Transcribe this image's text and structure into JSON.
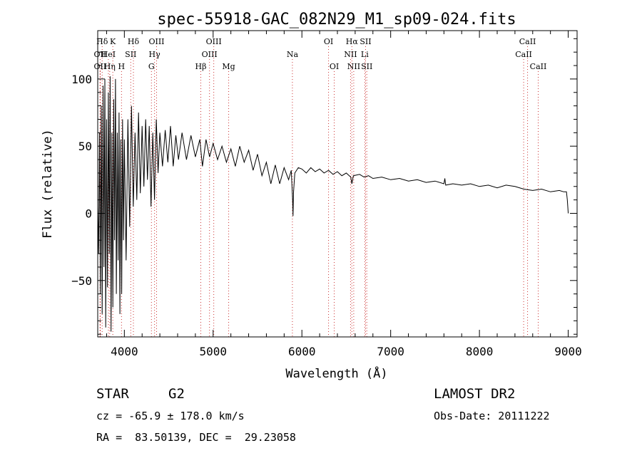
{
  "chart_data": {
    "type": "line",
    "title": "spec-55918-GAC_082N29_M1_sp09-024.fits",
    "xlabel": "Wavelength (Å)",
    "ylabel": "Flux (relative)",
    "xlim": [
      3700,
      9100
    ],
    "ylim": [
      -92,
      136
    ],
    "x_ticks": [
      4000,
      5000,
      6000,
      7000,
      8000,
      9000
    ],
    "y_ticks": [
      -50,
      0,
      50,
      100
    ],
    "grid": false,
    "line_color": "#000000",
    "marker_line_color": "#cc3333",
    "series": [
      {
        "name": "",
        "points": [
          [
            3700,
            5
          ],
          [
            3710,
            -30
          ],
          [
            3720,
            60
          ],
          [
            3730,
            -60
          ],
          [
            3740,
            80
          ],
          [
            3750,
            -75
          ],
          [
            3760,
            95
          ],
          [
            3770,
            -40
          ],
          [
            3780,
            100
          ],
          [
            3790,
            -85
          ],
          [
            3800,
            70
          ],
          [
            3810,
            -55
          ],
          [
            3820,
            90
          ],
          [
            3830,
            -30
          ],
          [
            3840,
            102
          ],
          [
            3850,
            -88
          ],
          [
            3860,
            60
          ],
          [
            3870,
            -70
          ],
          [
            3880,
            85
          ],
          [
            3890,
            -20
          ],
          [
            3900,
            100
          ],
          [
            3910,
            -60
          ],
          [
            3920,
            60
          ],
          [
            3930,
            -35
          ],
          [
            3940,
            75
          ],
          [
            3950,
            -75
          ],
          [
            3960,
            55
          ],
          [
            3970,
            -60
          ],
          [
            3980,
            70
          ],
          [
            3990,
            -20
          ],
          [
            4000,
            55
          ],
          [
            4020,
            -35
          ],
          [
            4040,
            70
          ],
          [
            4060,
            -10
          ],
          [
            4080,
            80
          ],
          [
            4100,
            5
          ],
          [
            4120,
            60
          ],
          [
            4140,
            10
          ],
          [
            4160,
            75
          ],
          [
            4180,
            15
          ],
          [
            4200,
            65
          ],
          [
            4220,
            20
          ],
          [
            4240,
            70
          ],
          [
            4260,
            25
          ],
          [
            4280,
            65
          ],
          [
            4300,
            5
          ],
          [
            4320,
            60
          ],
          [
            4340,
            10
          ],
          [
            4360,
            70
          ],
          [
            4380,
            30
          ],
          [
            4400,
            60
          ],
          [
            4430,
            35
          ],
          [
            4460,
            62
          ],
          [
            4490,
            38
          ],
          [
            4520,
            65
          ],
          [
            4550,
            35
          ],
          [
            4580,
            58
          ],
          [
            4610,
            40
          ],
          [
            4650,
            60
          ],
          [
            4700,
            40
          ],
          [
            4750,
            58
          ],
          [
            4800,
            42
          ],
          [
            4850,
            55
          ],
          [
            4880,
            35
          ],
          [
            4920,
            55
          ],
          [
            4960,
            42
          ],
          [
            5000,
            52
          ],
          [
            5050,
            40
          ],
          [
            5100,
            50
          ],
          [
            5150,
            38
          ],
          [
            5200,
            48
          ],
          [
            5250,
            35
          ],
          [
            5300,
            50
          ],
          [
            5350,
            38
          ],
          [
            5400,
            47
          ],
          [
            5450,
            32
          ],
          [
            5500,
            44
          ],
          [
            5550,
            28
          ],
          [
            5600,
            38
          ],
          [
            5650,
            22
          ],
          [
            5700,
            36
          ],
          [
            5750,
            22
          ],
          [
            5800,
            34
          ],
          [
            5850,
            25
          ],
          [
            5880,
            32
          ],
          [
            5895,
            10
          ],
          [
            5900,
            -2
          ],
          [
            5905,
            15
          ],
          [
            5920,
            30
          ],
          [
            5960,
            34
          ],
          [
            6000,
            33
          ],
          [
            6050,
            30
          ],
          [
            6100,
            34
          ],
          [
            6150,
            31
          ],
          [
            6200,
            33
          ],
          [
            6250,
            30
          ],
          [
            6300,
            32
          ],
          [
            6350,
            29
          ],
          [
            6400,
            31
          ],
          [
            6450,
            28
          ],
          [
            6500,
            30
          ],
          [
            6550,
            27
          ],
          [
            6563,
            22
          ],
          [
            6580,
            28
          ],
          [
            6650,
            29
          ],
          [
            6700,
            27
          ],
          [
            6750,
            28
          ],
          [
            6800,
            26
          ],
          [
            6900,
            27
          ],
          [
            7000,
            25
          ],
          [
            7100,
            26
          ],
          [
            7200,
            24
          ],
          [
            7300,
            25
          ],
          [
            7400,
            23
          ],
          [
            7500,
            24
          ],
          [
            7600,
            22
          ],
          [
            7610,
            26
          ],
          [
            7620,
            21
          ],
          [
            7700,
            22
          ],
          [
            7800,
            21
          ],
          [
            7900,
            22
          ],
          [
            8000,
            20
          ],
          [
            8100,
            21
          ],
          [
            8200,
            19
          ],
          [
            8300,
            21
          ],
          [
            8400,
            20
          ],
          [
            8500,
            18
          ],
          [
            8600,
            17
          ],
          [
            8700,
            18
          ],
          [
            8800,
            16
          ],
          [
            8900,
            17
          ],
          [
            8950,
            16
          ],
          [
            8980,
            16
          ],
          [
            8990,
            10
          ],
          [
            9000,
            0
          ]
        ]
      }
    ],
    "line_markers": [
      {
        "label": "Hδ",
        "row": 0,
        "x": 3750
      },
      {
        "label": "K",
        "row": 0,
        "x": 3870
      },
      {
        "label": "Hδ",
        "row": 0,
        "x": 4102
      },
      {
        "label": "OIII",
        "row": 0,
        "x": 4363
      },
      {
        "label": "OIII",
        "row": 0,
        "x": 5007
      },
      {
        "label": "OI",
        "row": 0,
        "x": 6300
      },
      {
        "label": "Hα",
        "row": 0,
        "x": 6563
      },
      {
        "label": "SII",
        "row": 0,
        "x": 6717
      },
      {
        "label": "CaII",
        "row": 0,
        "x": 8542
      },
      {
        "label": "OII",
        "row": 1,
        "x": 3727
      },
      {
        "label": "HeI",
        "row": 1,
        "x": 3820
      },
      {
        "label": "SII",
        "row": 1,
        "x": 4072
      },
      {
        "label": "Hγ",
        "row": 1,
        "x": 4340
      },
      {
        "label": "OIII",
        "row": 1,
        "x": 4959
      },
      {
        "label": "Na",
        "row": 1,
        "x": 5893
      },
      {
        "label": "NII",
        "row": 1,
        "x": 6548
      },
      {
        "label": "Li",
        "row": 1,
        "x": 6708
      },
      {
        "label": "CaII",
        "row": 1,
        "x": 8498
      },
      {
        "label": "OII",
        "row": 2,
        "x": 3727
      },
      {
        "label": "Hη",
        "row": 2,
        "x": 3835
      },
      {
        "label": "H",
        "row": 2,
        "x": 3968
      },
      {
        "label": "G",
        "row": 2,
        "x": 4305
      },
      {
        "label": "Hβ",
        "row": 2,
        "x": 4861
      },
      {
        "label": "Mg",
        "row": 2,
        "x": 5175
      },
      {
        "label": "OI",
        "row": 2,
        "x": 6364
      },
      {
        "label": "NII",
        "row": 2,
        "x": 6584
      },
      {
        "label": "SII",
        "row": 2,
        "x": 6731
      },
      {
        "label": "CaII",
        "row": 2,
        "x": 8662
      }
    ]
  },
  "info": {
    "object_type": "STAR",
    "subclass": "G2",
    "survey": "LAMOST DR2",
    "redshift": "cz = -65.9 ± 178.0 km/s",
    "obs_date": "Obs-Date: 20111222",
    "coords": "RA =  83.50139, DEC =  29.23058"
  }
}
